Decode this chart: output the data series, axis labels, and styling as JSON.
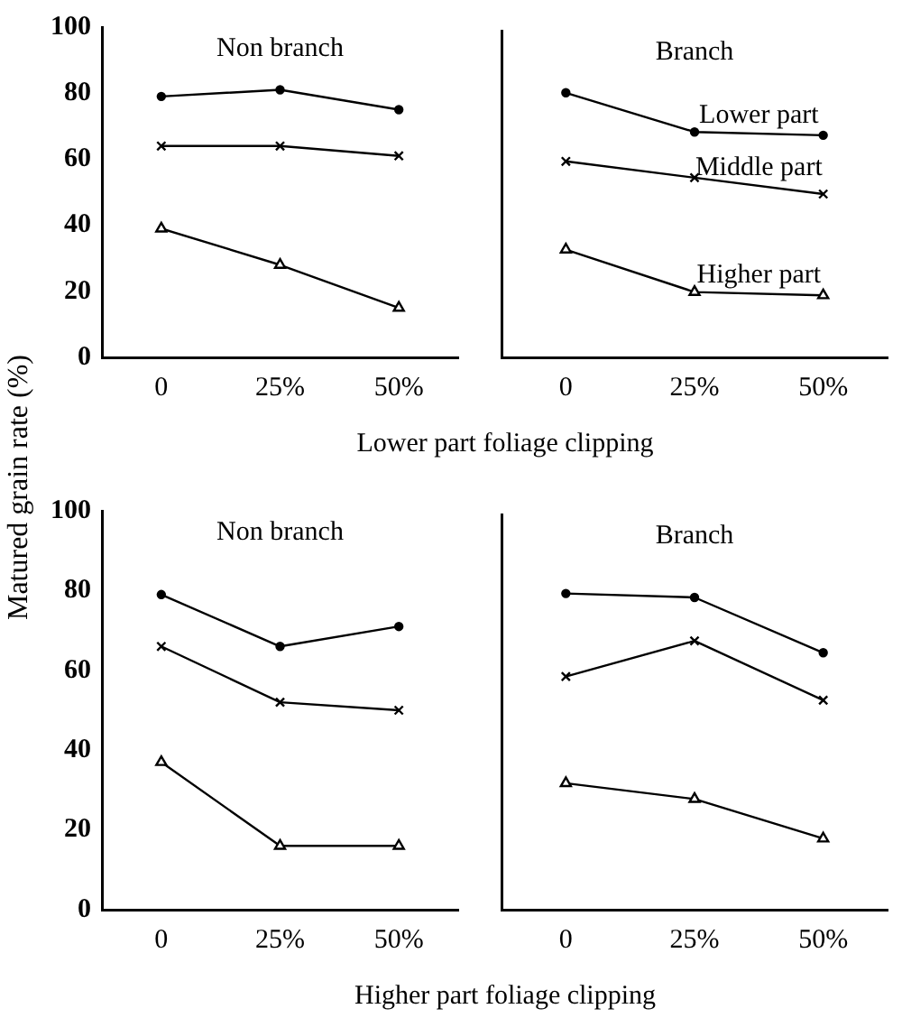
{
  "chart_data": [
    {
      "type": "line",
      "title": "Non branch",
      "xlabel": "Lower part foliage clipping",
      "ylabel": "Matured grain rate (%)",
      "categories": [
        "0",
        "25%",
        "50%"
      ],
      "ylim": [
        0,
        100
      ],
      "yticks": [
        0,
        20,
        40,
        60,
        80,
        100
      ],
      "grid": false,
      "series": [
        {
          "color": "#000000",
          "marker": "circle",
          "values": [
            79,
            81,
            75
          ]
        },
        {
          "color": "#000000",
          "marker": "cross",
          "values": [
            64,
            64,
            61
          ]
        },
        {
          "color": "#000000",
          "marker": "triangle",
          "values": [
            39,
            28,
            15
          ]
        }
      ]
    },
    {
      "type": "line",
      "title": "Branch",
      "categories": [
        "0",
        "25%",
        "50%"
      ],
      "ylim": [
        0,
        100
      ],
      "yticks": [
        0,
        20,
        40,
        60,
        80,
        100
      ],
      "grid": false,
      "tick_labels": "x",
      "series": [
        {
          "name": "Lower part",
          "color": "#000000",
          "marker": "circle",
          "values": [
            81,
            69,
            68
          ]
        },
        {
          "name": "Middle part",
          "color": "#000000",
          "marker": "cross",
          "values": [
            60,
            55,
            50
          ]
        },
        {
          "name": "Higher part",
          "color": "#000000",
          "marker": "triangle",
          "values": [
            33,
            20,
            19
          ]
        }
      ]
    },
    {
      "type": "line",
      "title": "Non branch",
      "xlabel": "Higher part foliage clipping",
      "categories": [
        "0",
        "25%",
        "50%"
      ],
      "ylim": [
        0,
        100
      ],
      "yticks": [
        0,
        20,
        40,
        60,
        80,
        100
      ],
      "grid": false,
      "series": [
        {
          "color": "#000000",
          "marker": "circle",
          "values": [
            79,
            66,
            71
          ]
        },
        {
          "color": "#000000",
          "marker": "cross",
          "values": [
            66,
            52,
            50
          ]
        },
        {
          "color": "#000000",
          "marker": "triangle",
          "values": [
            37,
            16,
            16
          ]
        }
      ]
    },
    {
      "type": "line",
      "title": "Branch",
      "categories": [
        "0",
        "25%",
        "50%"
      ],
      "ylim": [
        0,
        100
      ],
      "yticks": [
        0,
        20,
        40,
        60,
        80,
        100
      ],
      "grid": false,
      "tick_labels": "x",
      "series": [
        {
          "color": "#000000",
          "marker": "circle",
          "values": [
            80,
            79,
            65
          ]
        },
        {
          "color": "#000000",
          "marker": "cross",
          "values": [
            59,
            68,
            53
          ]
        },
        {
          "color": "#000000",
          "marker": "triangle",
          "values": [
            32,
            28,
            18
          ]
        }
      ]
    }
  ]
}
